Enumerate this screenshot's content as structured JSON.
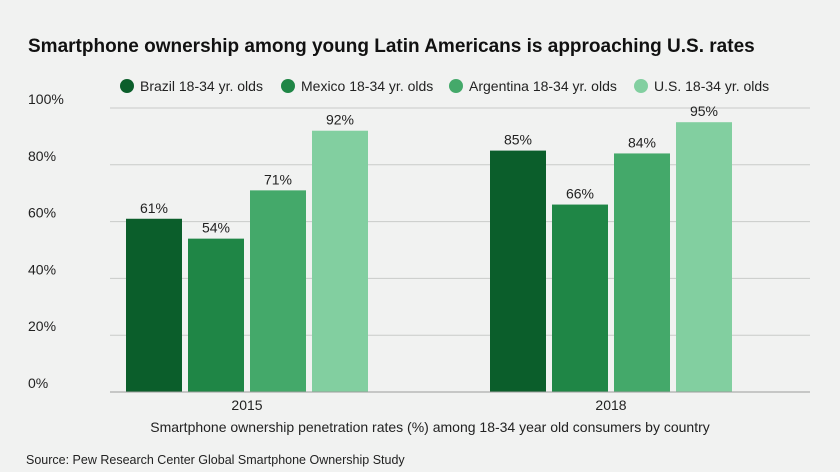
{
  "chart_data": {
    "type": "bar",
    "title": "Smartphone ownership among young Latin Americans is approaching U.S. rates",
    "xlabel": "Smartphone ownership penetration rates (%) among 18-34 year old consumers by country",
    "ylabel": "",
    "source": "Source: Pew Research Center Global Smartphone Ownership Study",
    "categories": [
      "2015",
      "2018"
    ],
    "ylim": [
      0,
      100
    ],
    "yticks": [
      0,
      20,
      40,
      60,
      80,
      100
    ],
    "ytick_labels": [
      "0%",
      "20%",
      "40%",
      "60%",
      "80%",
      "100%"
    ],
    "grid": true,
    "legend_position": "top",
    "series": [
      {
        "name": "Brazil 18-34 yr. olds",
        "color": "#0b5e2b",
        "values": [
          61,
          85
        ],
        "labels": [
          "61%",
          "85%"
        ]
      },
      {
        "name": "Mexico 18-34 yr. olds",
        "color": "#1f8646",
        "values": [
          54,
          66
        ],
        "labels": [
          "54%",
          "66%"
        ]
      },
      {
        "name": "Argentina 18-34 yr. olds",
        "color": "#44a96a",
        "values": [
          71,
          84
        ],
        "labels": [
          "71%",
          "84%"
        ]
      },
      {
        "name": "U.S. 18-34 yr. olds",
        "color": "#82cfa0",
        "values": [
          92,
          95
        ],
        "labels": [
          "92%",
          "95%"
        ]
      }
    ]
  }
}
